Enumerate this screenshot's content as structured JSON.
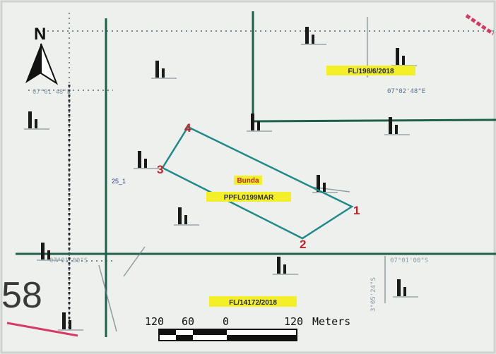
{
  "colors": {
    "background": "#eef0ed",
    "grid_line": "#1f5f4c",
    "parcel_outline": "#1f8a88",
    "vertex_label": "#c0222b",
    "highlight": "#f3f02a",
    "site_name": "#c0222b",
    "lot_text": "#222222",
    "tick_text": "#5b6e8c"
  },
  "north_arrow": {
    "label": "N",
    "icon": "north-arrow-icon"
  },
  "parcel": {
    "name": "Bunda",
    "ref": "PPFL0199MAR",
    "vertices": [
      "1",
      "2",
      "3",
      "4"
    ],
    "side_label": "25_1"
  },
  "lot_labels": {
    "top_right": "FL/198/6/2018",
    "bottom": "FL/14172/2018"
  },
  "coordinates": {
    "top_left": "07°01'48\"E",
    "top_right": "07°02'48\"E",
    "bottom_right": "07°01'00\"S",
    "bottom_left": "07°01'00\"S",
    "vertical": "3°05'24\"S"
  },
  "sheet_number": "58",
  "scale_bar": {
    "ticks": [
      "120",
      "60",
      "0",
      "120"
    ],
    "unit": "Meters"
  }
}
